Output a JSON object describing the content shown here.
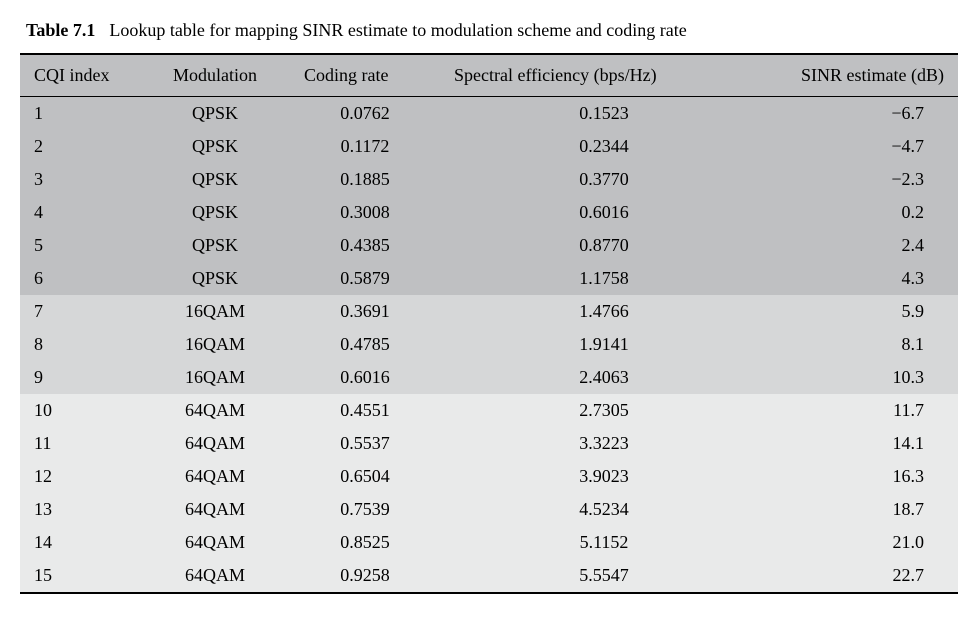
{
  "caption": {
    "label": "Table 7.1",
    "text": "Lookup table for mapping SINR estimate to modulation scheme and coding rate"
  },
  "table": {
    "title_fontsize": 18,
    "cell_fontsize": 18,
    "colors": {
      "background_body": "#ffffff",
      "header_bg": "#bfc0c2",
      "band_dark": "#bfc0c2",
      "band_mid": "#d6d7d8",
      "band_light": "#e9eaea",
      "text": "#000000",
      "rule": "#000000"
    },
    "columns": [
      {
        "key": "cqi",
        "label": "CQI index",
        "align": "left"
      },
      {
        "key": "mod",
        "label": "Modulation",
        "align": "center"
      },
      {
        "key": "cr",
        "label": "Coding rate",
        "align": "center"
      },
      {
        "key": "se",
        "label": "Spectral efficiency (bps/Hz)",
        "align": "center"
      },
      {
        "key": "sinr",
        "label": "SINR estimate (dB)",
        "align": "right"
      }
    ],
    "bands": [
      {
        "rows": [
          0,
          1,
          2,
          3,
          4,
          5
        ],
        "bg": "#bfc0c2"
      },
      {
        "rows": [
          6,
          7,
          8
        ],
        "bg": "#d6d7d8"
      },
      {
        "rows": [
          9,
          10,
          11,
          12,
          13,
          14
        ],
        "bg": "#e9eaea"
      }
    ],
    "rows": [
      {
        "cqi": "1",
        "mod": "QPSK",
        "cr": "0.0762",
        "se": "0.1523",
        "sinr": "−6.7"
      },
      {
        "cqi": "2",
        "mod": "QPSK",
        "cr": "0.1172",
        "se": "0.2344",
        "sinr": "−4.7"
      },
      {
        "cqi": "3",
        "mod": "QPSK",
        "cr": "0.1885",
        "se": "0.3770",
        "sinr": "−2.3"
      },
      {
        "cqi": "4",
        "mod": "QPSK",
        "cr": "0.3008",
        "se": "0.6016",
        "sinr": "0.2"
      },
      {
        "cqi": "5",
        "mod": "QPSK",
        "cr": "0.4385",
        "se": "0.8770",
        "sinr": "2.4"
      },
      {
        "cqi": "6",
        "mod": "QPSK",
        "cr": "0.5879",
        "se": "1.1758",
        "sinr": "4.3"
      },
      {
        "cqi": "7",
        "mod": "16QAM",
        "cr": "0.3691",
        "se": "1.4766",
        "sinr": "5.9"
      },
      {
        "cqi": "8",
        "mod": "16QAM",
        "cr": "0.4785",
        "se": "1.9141",
        "sinr": "8.1"
      },
      {
        "cqi": "9",
        "mod": "16QAM",
        "cr": "0.6016",
        "se": "2.4063",
        "sinr": "10.3"
      },
      {
        "cqi": "10",
        "mod": "64QAM",
        "cr": "0.4551",
        "se": "2.7305",
        "sinr": "11.7"
      },
      {
        "cqi": "11",
        "mod": "64QAM",
        "cr": "0.5537",
        "se": "3.3223",
        "sinr": "14.1"
      },
      {
        "cqi": "12",
        "mod": "64QAM",
        "cr": "0.6504",
        "se": "3.9023",
        "sinr": "16.3"
      },
      {
        "cqi": "13",
        "mod": "64QAM",
        "cr": "0.7539",
        "se": "4.5234",
        "sinr": "18.7"
      },
      {
        "cqi": "14",
        "mod": "64QAM",
        "cr": "0.8525",
        "se": "5.1152",
        "sinr": "21.0"
      },
      {
        "cqi": "15",
        "mod": "64QAM",
        "cr": "0.9258",
        "se": "5.5547",
        "sinr": "22.7"
      }
    ]
  }
}
